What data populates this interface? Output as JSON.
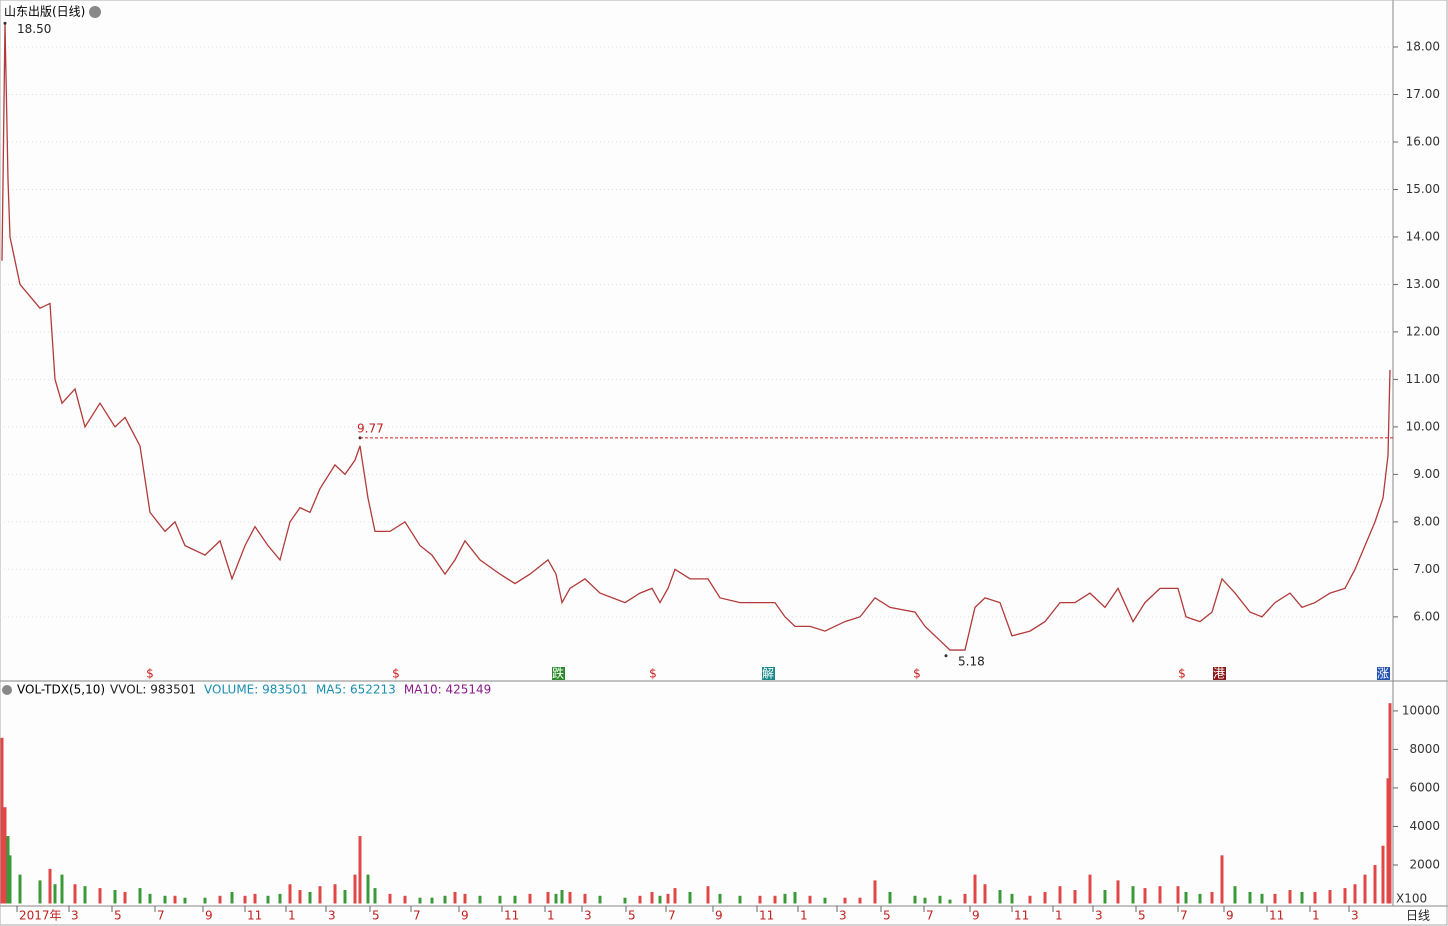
{
  "title": "山东出版(日线)",
  "chart_data": [
    {
      "type": "line",
      "title": "山东出版(日线)",
      "x": [
        2,
        5,
        8,
        10,
        20,
        40,
        50,
        55,
        62,
        75,
        85,
        100,
        115,
        125,
        140,
        150,
        165,
        175,
        185,
        205,
        220,
        232,
        245,
        255,
        268,
        280,
        290,
        300,
        310,
        320,
        335,
        345,
        355,
        360,
        368,
        375,
        390,
        405,
        420,
        432,
        445,
        455,
        465,
        480,
        500,
        515,
        530,
        548,
        556,
        562,
        570,
        585,
        600,
        625,
        640,
        652,
        660,
        668,
        675,
        690,
        708,
        720,
        740,
        760,
        775,
        785,
        795,
        810,
        825,
        845,
        860,
        875,
        890,
        915,
        925,
        940,
        950,
        965,
        975,
        985,
        1000,
        1012,
        1030,
        1045,
        1060,
        1075,
        1090,
        1105,
        1118,
        1133,
        1145,
        1160,
        1178,
        1186,
        1200,
        1212,
        1222,
        1235,
        1250,
        1262,
        1275,
        1290,
        1302,
        1315,
        1330,
        1345,
        1355,
        1365,
        1375,
        1383,
        1388,
        1390
      ],
      "series": [
        {
          "name": "山东出版",
          "color": "#b23a3a",
          "values": [
            13.5,
            18.5,
            15.2,
            14.0,
            13.0,
            12.5,
            12.6,
            11.0,
            10.5,
            10.8,
            10.0,
            10.5,
            10.0,
            10.2,
            9.6,
            8.2,
            7.8,
            8.0,
            7.5,
            7.3,
            7.6,
            6.8,
            7.5,
            7.9,
            7.5,
            7.2,
            8.0,
            8.3,
            8.2,
            8.7,
            9.2,
            9.0,
            9.3,
            9.6,
            8.5,
            7.8,
            7.8,
            8.0,
            7.5,
            7.3,
            6.9,
            7.2,
            7.6,
            7.2,
            6.9,
            6.7,
            6.9,
            7.2,
            6.9,
            6.3,
            6.6,
            6.8,
            6.5,
            6.3,
            6.5,
            6.6,
            6.3,
            6.6,
            7.0,
            6.8,
            6.8,
            6.4,
            6.3,
            6.3,
            6.3,
            6.0,
            5.8,
            5.8,
            5.7,
            5.9,
            6.0,
            6.4,
            6.2,
            6.1,
            5.8,
            5.5,
            5.3,
            5.3,
            6.2,
            6.4,
            6.3,
            5.6,
            5.7,
            5.9,
            6.3,
            6.3,
            6.5,
            6.2,
            6.6,
            5.9,
            6.3,
            6.6,
            6.6,
            6.0,
            5.9,
            6.1,
            6.8,
            6.5,
            6.1,
            6.0,
            6.3,
            6.5,
            6.2,
            6.3,
            6.5,
            6.6,
            7.0,
            7.5,
            8.0,
            8.5,
            9.4,
            11.2
          ]
        }
      ],
      "xlim": [
        0,
        1393
      ],
      "ylim": [
        4.67,
        18.99
      ],
      "yticks": [
        {
          "value": 6,
          "label": "6.00"
        },
        {
          "value": 7,
          "label": "7.00"
        },
        {
          "value": 8,
          "label": "8.00"
        },
        {
          "value": 9,
          "label": "9.00"
        },
        {
          "value": 10,
          "label": "10.00"
        },
        {
          "value": 11,
          "label": "11.00"
        },
        {
          "value": 12,
          "label": "12.00"
        },
        {
          "value": 13,
          "label": "13.00"
        },
        {
          "value": 14,
          "label": "14.00"
        },
        {
          "value": 15,
          "label": "15.00"
        },
        {
          "value": 16,
          "label": "16.00"
        },
        {
          "value": 17,
          "label": "17.00"
        },
        {
          "value": 18,
          "label": "18.00"
        }
      ],
      "grid": true,
      "annotations": [
        {
          "x": 5,
          "y": 18.5,
          "label": "18.50"
        },
        {
          "x": 360,
          "y": 9.77,
          "label": "9.77"
        },
        {
          "x": 946,
          "y": 5.18,
          "label": "5.18"
        }
      ],
      "events": [
        {
          "x": 150,
          "label": "$"
        },
        {
          "x": 396,
          "label": "$"
        },
        {
          "x": 558,
          "label": "跌"
        },
        {
          "x": 653,
          "label": "$"
        },
        {
          "x": 768,
          "label": "解"
        },
        {
          "x": 917,
          "label": "$"
        },
        {
          "x": 1182,
          "label": "$"
        },
        {
          "x": 1219,
          "label": "港"
        },
        {
          "x": 1383,
          "label": "涨"
        }
      ]
    },
    {
      "type": "bar",
      "title": "VOL-TDX(5,10)",
      "legend": [
        "VVOL: 983501",
        "VOLUME: 983501",
        "MA5: 652213",
        "MA10: 425149"
      ],
      "unit": "X100",
      "color": "#e04848",
      "values": [
        8600,
        5000,
        3500,
        2500,
        1500,
        1200,
        1800,
        1000,
        1500,
        1000,
        900,
        800,
        700,
        600,
        800,
        500,
        400,
        400,
        300,
        300,
        400,
        600,
        400,
        500,
        400,
        500,
        1000,
        700,
        600,
        900,
        1000,
        700,
        1500,
        3500,
        1500,
        800,
        500,
        400,
        300,
        300,
        400,
        600,
        500,
        400,
        400,
        400,
        500,
        600,
        500,
        700,
        600,
        500,
        400,
        300,
        400,
        600,
        400,
        500,
        800,
        600,
        900,
        500,
        400,
        400,
        400,
        500,
        600,
        400,
        300,
        300,
        300,
        1200,
        600,
        400,
        300,
        400,
        200,
        500,
        1500,
        1000,
        700,
        500,
        400,
        600,
        900,
        700,
        1500,
        700,
        1200,
        900,
        800,
        900,
        900,
        600,
        500,
        600,
        2500,
        900,
        600,
        500,
        500,
        700,
        600,
        600,
        700,
        800,
        1000,
        1500,
        2000,
        3000,
        6500,
        10400
      ],
      "ylim": [
        0,
        11500
      ],
      "yticks": [
        2000,
        4000,
        6000,
        8000,
        10000
      ],
      "xticks": [
        {
          "value": 20,
          "label": "2017年"
        },
        {
          "value": 72,
          "label": "3"
        },
        {
          "value": 115,
          "label": "5"
        },
        {
          "value": 158,
          "label": "7"
        },
        {
          "value": 206,
          "label": "9"
        },
        {
          "value": 248,
          "label": "11"
        },
        {
          "value": 289,
          "label": "1"
        },
        {
          "value": 329,
          "label": "3"
        },
        {
          "value": 373,
          "label": "5"
        },
        {
          "value": 414,
          "label": "7"
        },
        {
          "value": 462,
          "label": "9"
        },
        {
          "value": 505,
          "label": "11"
        },
        {
          "value": 548,
          "label": "1"
        },
        {
          "value": 585,
          "label": "3"
        },
        {
          "value": 629,
          "label": "5"
        },
        {
          "value": 669,
          "label": "7"
        },
        {
          "value": 716,
          "label": "9"
        },
        {
          "value": 760,
          "label": "11"
        },
        {
          "value": 801,
          "label": "1"
        },
        {
          "value": 840,
          "label": "3"
        },
        {
          "value": 884,
          "label": "5"
        },
        {
          "value": 927,
          "label": "7"
        },
        {
          "value": 973,
          "label": "9"
        },
        {
          "value": 1015,
          "label": "11"
        },
        {
          "value": 1056,
          "label": "1"
        },
        {
          "value": 1096,
          "label": "3"
        },
        {
          "value": 1139,
          "label": "5"
        },
        {
          "value": 1181,
          "label": "7"
        },
        {
          "value": 1227,
          "label": "9"
        },
        {
          "value": 1270,
          "label": "11"
        },
        {
          "value": 1313,
          "label": "1"
        },
        {
          "value": 1352,
          "label": "3"
        }
      ],
      "period": "日线"
    }
  ]
}
